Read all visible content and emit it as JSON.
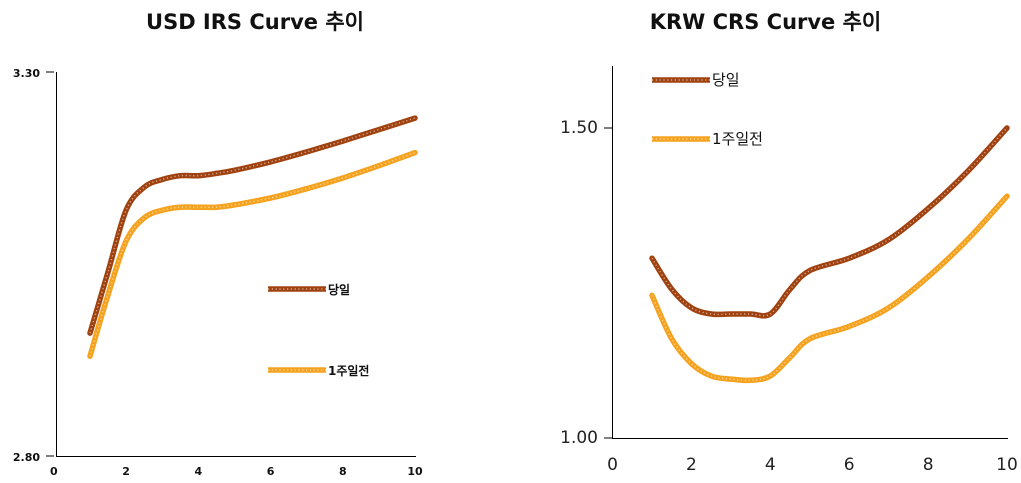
{
  "colors": {
    "today": "#a0420f",
    "week_ago": "#f5a21f"
  },
  "chart_data": [
    {
      "type": "line",
      "title": "USD IRS Curve 추이",
      "xlabel": "",
      "ylabel": "",
      "xlim": [
        0,
        10
      ],
      "ylim": [
        2.8,
        3.3
      ],
      "x_ticks": [
        "0",
        "2",
        "4",
        "6",
        "8",
        "10"
      ],
      "y_ticks": [
        "3.30",
        "2.80"
      ],
      "legend_position": "center-right",
      "grid": false,
      "series": [
        {
          "name": "당일",
          "x": [
            1,
            1.5,
            2,
            2.5,
            3,
            3.5,
            4,
            4.5,
            5,
            6,
            7,
            8,
            9,
            10
          ],
          "values": [
            2.96,
            3.04,
            3.12,
            3.15,
            3.16,
            3.165,
            3.165,
            3.168,
            3.172,
            3.183,
            3.196,
            3.21,
            3.225,
            3.24
          ]
        },
        {
          "name": "1주일전",
          "x": [
            1,
            1.5,
            2,
            2.5,
            3,
            3.5,
            4,
            4.5,
            5,
            6,
            7,
            8,
            9,
            10
          ],
          "values": [
            2.93,
            3.01,
            3.08,
            3.11,
            3.12,
            3.124,
            3.124,
            3.124,
            3.127,
            3.136,
            3.148,
            3.162,
            3.178,
            3.195
          ]
        }
      ]
    },
    {
      "type": "line",
      "title": "KRW CRS Curve 추이",
      "xlabel": "",
      "ylabel": "",
      "xlim": [
        0,
        10
      ],
      "ylim": [
        1.0,
        1.6
      ],
      "x_ticks": [
        "0",
        "2",
        "4",
        "6",
        "8",
        "10"
      ],
      "y_ticks": [
        "1.50",
        "1.00"
      ],
      "legend_position": "top-left",
      "grid": false,
      "series": [
        {
          "name": "당일",
          "x": [
            1,
            1.5,
            2,
            2.5,
            3,
            3.5,
            4,
            4.5,
            5,
            6,
            7,
            8,
            9,
            10
          ],
          "values": [
            1.29,
            1.24,
            1.21,
            1.2,
            1.2,
            1.2,
            1.2,
            1.24,
            1.27,
            1.29,
            1.32,
            1.37,
            1.43,
            1.5
          ]
        },
        {
          "name": "1주일전",
          "x": [
            1,
            1.5,
            2,
            2.5,
            3,
            3.5,
            4,
            4.5,
            5,
            6,
            7,
            8,
            9,
            10
          ],
          "values": [
            1.23,
            1.16,
            1.12,
            1.1,
            1.095,
            1.093,
            1.1,
            1.13,
            1.16,
            1.18,
            1.21,
            1.26,
            1.32,
            1.39
          ]
        }
      ]
    }
  ]
}
